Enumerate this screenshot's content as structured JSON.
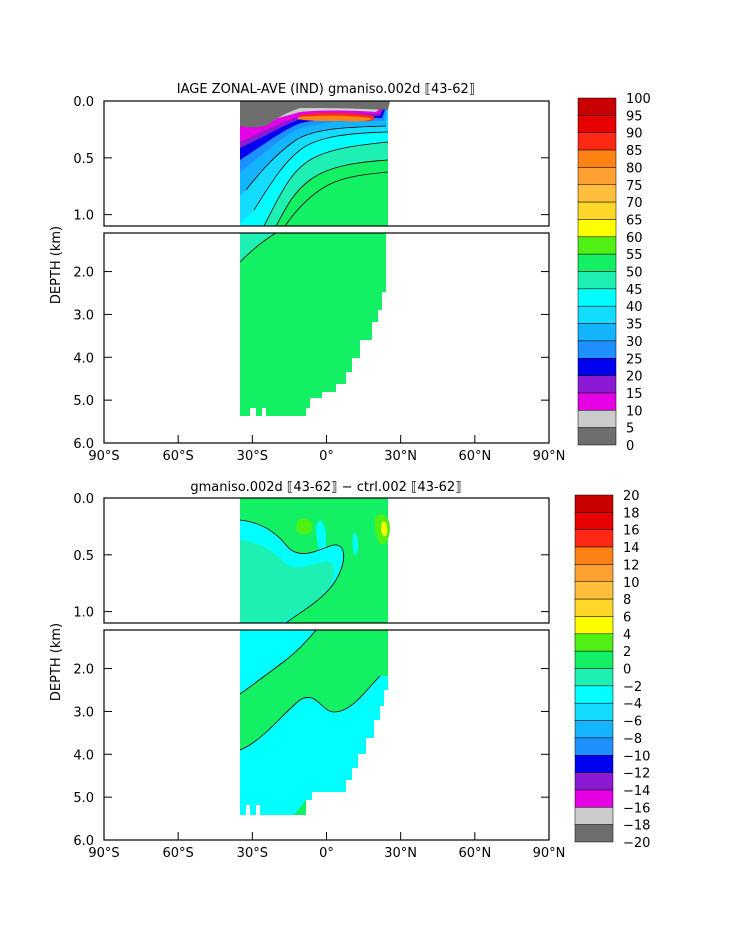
{
  "colors": {
    "gray_dark": "#6e6e6e",
    "gray_light": "#cccccc",
    "magenta": "#e600e6",
    "purple": "#8c1ad4",
    "blue": "#0000f0",
    "blue_mid": "#0a5ef0",
    "azure": "#1e90ff",
    "sky": "#14b4ff",
    "cyan_light": "#14dcff",
    "cyan": "#00ffff",
    "aqua_green": "#1ef0b4",
    "green": "#14f064",
    "lime": "#50f014",
    "yellow": "#ffff00",
    "gold": "#ffd728",
    "amber": "#ffbe3c",
    "orange_light": "#ffa032",
    "orange": "#ff8214",
    "red_orange": "#ff2814",
    "red": "#e60000",
    "dark_red": "#c80000"
  },
  "chart_data": [
    {
      "type": "heatmap",
      "title": "IAGE ZONAL-AVE (IND) gmaniso.002d ⟦43-62⟧",
      "ylabel": "DEPTH (km)",
      "x_ticks": [
        "90°S",
        "60°S",
        "30°S",
        "0°",
        "30°N",
        "60°N",
        "90°N"
      ],
      "x_values": [
        -90,
        -60,
        -30,
        0,
        30,
        60,
        90
      ],
      "y_ticks_upper": [
        "0.0",
        "0.5",
        "1.0"
      ],
      "y_ticks_lower": [
        "2.0",
        "3.0",
        "4.0",
        "5.0",
        "6.0"
      ],
      "xlim": [
        -90,
        90
      ],
      "ylim": [
        6.0,
        0.0
      ],
      "data_lat_range": [
        -35,
        25
      ],
      "colorbar_labels": [
        "100",
        "95",
        "90",
        "85",
        "80",
        "75",
        "70",
        "65",
        "60",
        "55",
        "50",
        "45",
        "40",
        "35",
        "30",
        "25",
        "20",
        "15",
        "10",
        "5",
        "0"
      ],
      "colorbar_colors": [
        "#c80000",
        "#e60000",
        "#ff2814",
        "#ff8214",
        "#ffa032",
        "#ffbe3c",
        "#ffd728",
        "#ffff00",
        "#50f014",
        "#14f064",
        "#1ef0b4",
        "#00ffff",
        "#14dcff",
        "#14b4ff",
        "#1e90ff",
        "#0000f0",
        "#8c1ad4",
        "#e600e6",
        "#cccccc",
        "#6e6e6e"
      ],
      "dominant_value_range": [
        50,
        55
      ]
    },
    {
      "type": "heatmap",
      "title": "gmaniso.002d ⟦43-62⟧ − ctrl.002 ⟦43-62⟧",
      "ylabel": "DEPTH (km)",
      "x_ticks": [
        "90°S",
        "60°S",
        "30°S",
        "0°",
        "30°N",
        "60°N",
        "90°N"
      ],
      "x_values": [
        -90,
        -60,
        -30,
        0,
        30,
        60,
        90
      ],
      "y_ticks_upper": [
        "0.0",
        "0.5",
        "1.0"
      ],
      "y_ticks_lower": [
        "2.0",
        "3.0",
        "4.0",
        "5.0",
        "6.0"
      ],
      "xlim": [
        -90,
        90
      ],
      "ylim": [
        6.0,
        0.0
      ],
      "data_lat_range": [
        -35,
        25
      ],
      "colorbar_labels": [
        "20",
        "18",
        "16",
        "14",
        "12",
        "10",
        "8",
        "6",
        "4",
        "2",
        "0",
        "−2",
        "−4",
        "−6",
        "−8",
        "−10",
        "−12",
        "−14",
        "−16",
        "−18",
        "−20"
      ],
      "colorbar_colors": [
        "#c80000",
        "#e60000",
        "#ff2814",
        "#ff8214",
        "#ffa032",
        "#ffbe3c",
        "#ffd728",
        "#ffff00",
        "#50f014",
        "#14f064",
        "#1ef0b4",
        "#00ffff",
        "#14dcff",
        "#14b4ff",
        "#1e90ff",
        "#0000f0",
        "#8c1ad4",
        "#e600e6",
        "#cccccc",
        "#6e6e6e"
      ],
      "dominant_value_ranges": [
        [
          -2,
          0
        ],
        [
          0,
          2
        ]
      ]
    }
  ]
}
